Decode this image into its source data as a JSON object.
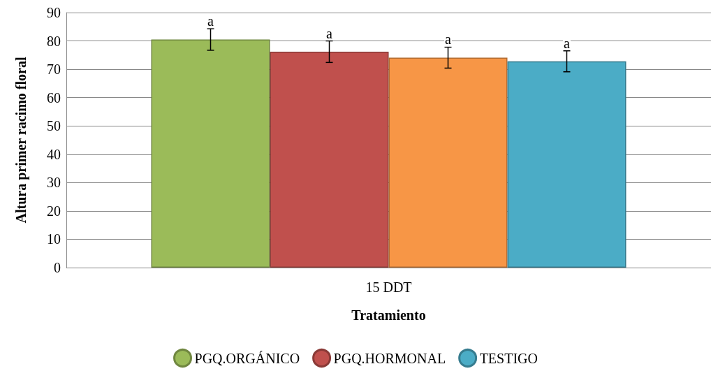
{
  "chart_data": {
    "type": "bar",
    "xlabel": "Tratamiento",
    "ylabel": "Altura primer racimo floral",
    "categories": [
      "15 DDT"
    ],
    "series": [
      {
        "name": "PGQ.ORGÁNICO",
        "color": "#9bbb59",
        "values": [
          80.5
        ],
        "errors": [
          3.8
        ],
        "value_labels": [
          "a"
        ]
      },
      {
        "name": "PGQ.HORMONAL",
        "color": "#c0504d",
        "values": [
          76.2
        ],
        "errors": [
          3.8
        ],
        "value_labels": [
          "a"
        ]
      },
      {
        "color": "#f79646",
        "values": [
          74.1
        ],
        "errors": [
          3.7
        ],
        "value_labels": [
          "a"
        ]
      },
      {
        "name": "TESTIGO",
        "color": "#4bacc6",
        "values": [
          72.8
        ],
        "errors": [
          3.7
        ],
        "value_labels": [
          "a"
        ]
      }
    ],
    "ylim": [
      0,
      90
    ],
    "yticks": [
      0,
      10,
      20,
      30,
      40,
      50,
      60,
      70,
      80,
      90
    ],
    "grid": "y",
    "legend": "bottom"
  }
}
